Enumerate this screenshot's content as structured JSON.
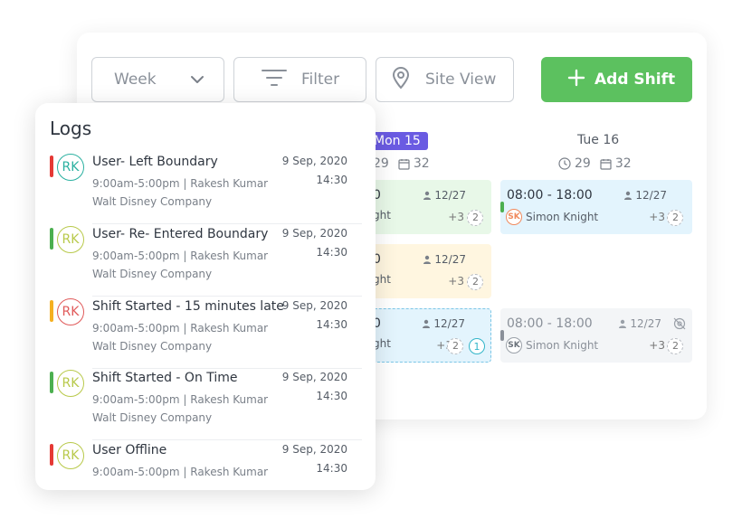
{
  "toolbar": {
    "week_label": "Week",
    "filter_label": "Filter",
    "site_view_label": "Site View",
    "add_shift_label": "Add Shift"
  },
  "calendar": {
    "mon": {
      "label": "Mon 15",
      "hours": "29",
      "shifts": "32"
    },
    "tue": {
      "label": "Tue 16",
      "hours": "29",
      "shifts": "32"
    },
    "mon_cards": [
      {
        "time": "0",
        "count": "12/27",
        "person": "ght",
        "plus": "+3",
        "ring": "2"
      },
      {
        "time": "0",
        "count": "12/27",
        "person": "ght",
        "plus": "+3",
        "ring": "2"
      },
      {
        "time": "0",
        "count": "12/27",
        "person": "ght",
        "plus": "+3",
        "ring": "2",
        "tag": "1"
      }
    ],
    "tue_cards": [
      {
        "time": "08:00 - 18:00",
        "count": "12/27",
        "initials": "SK",
        "person": "Simon Knight",
        "plus": "+3",
        "ring": "2"
      },
      {
        "time": "08:00 - 18:00",
        "count": "12/27",
        "initials": "SK",
        "person": "Simon Knight",
        "plus": "+3",
        "ring": "2"
      }
    ]
  },
  "logs": {
    "title": "Logs",
    "items": [
      {
        "title": "User- Left Boundary",
        "initials": "RK",
        "sub1": "9:00am-5:00pm | Rakesh Kumar",
        "sub2": "Walt Disney Company",
        "date": "9 Sep, 2020",
        "time": "14:30"
      },
      {
        "title": "User- Re- Entered Boundary",
        "initials": "RK",
        "sub1": "9:00am-5:00pm | Rakesh Kumar",
        "sub2": "Walt Disney Company",
        "date": "9 Sep, 2020",
        "time": "14:30"
      },
      {
        "title": "Shift Started - 15 minutes late",
        "initials": "RK",
        "sub1": "9:00am-5:00pm | Rakesh Kumar",
        "sub2": "Walt Disney Company",
        "date": "9 Sep, 2020",
        "time": "14:30"
      },
      {
        "title": "Shift Started - On Time",
        "initials": "RK",
        "sub1": "9:00am-5:00pm | Rakesh Kumar",
        "sub2": "Walt Disney Company",
        "date": "9 Sep, 2020",
        "time": "14:30"
      },
      {
        "title": "User Offline",
        "initials": "RK",
        "sub1": "9:00am-5:00pm | Rakesh Kumar",
        "sub2": "",
        "date": "9 Sep, 2020",
        "time": "14:30"
      }
    ]
  },
  "colors": {
    "accent_green": "#5cc15f",
    "accent_purple": "#6a5be2",
    "status_red": "#e53935",
    "status_green": "#4caf50",
    "status_amber": "#f5b021",
    "card_green": "#e8f8e8",
    "card_yellow": "#fff6e0",
    "card_blue": "#e3f4fd",
    "card_grey": "#f3f5f7"
  },
  "icons": [
    "chevron-down-icon",
    "filter-icon",
    "location-pin-icon",
    "plus-icon",
    "clock-icon",
    "calendar-icon",
    "person-icon",
    "no-location-icon"
  ]
}
